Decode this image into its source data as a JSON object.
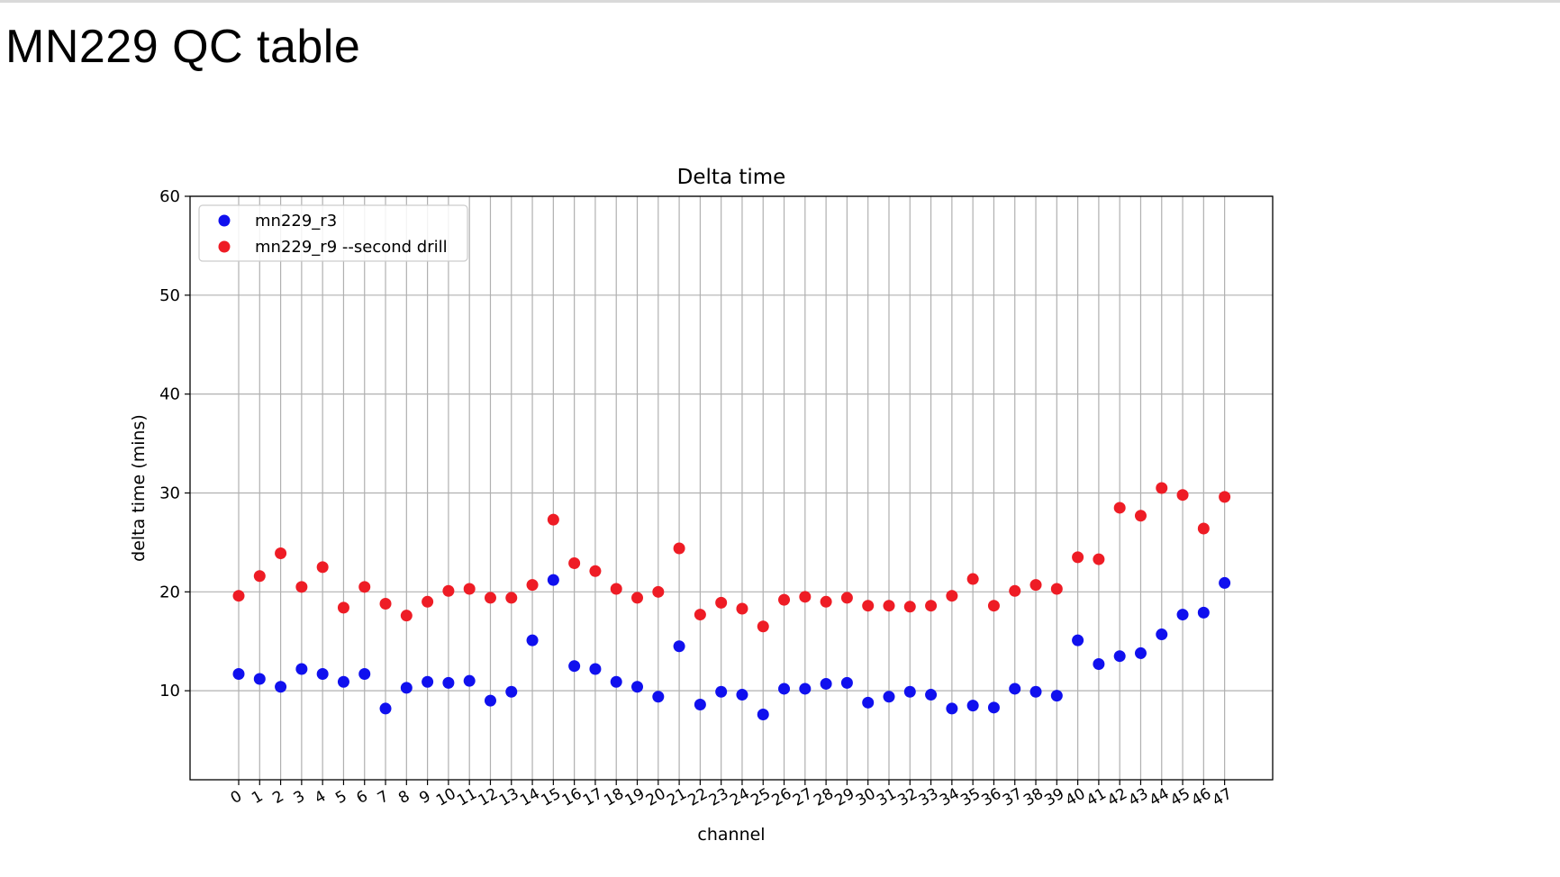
{
  "page": {
    "title": "MN229 QC table"
  },
  "chart_data": {
    "type": "scatter",
    "title": "Delta time",
    "xlabel": "channel",
    "ylabel": "delta time (mins)",
    "ylim": [
      1,
      60
    ],
    "yticks": [
      10,
      20,
      30,
      40,
      50,
      60
    ],
    "x": [
      0,
      1,
      2,
      3,
      4,
      5,
      6,
      7,
      8,
      9,
      10,
      11,
      12,
      13,
      14,
      15,
      16,
      17,
      18,
      19,
      20,
      21,
      22,
      23,
      24,
      25,
      26,
      27,
      28,
      29,
      30,
      31,
      32,
      33,
      34,
      35,
      36,
      37,
      38,
      39,
      40,
      41,
      42,
      43,
      44,
      45,
      46,
      47
    ],
    "xtick_labels": [
      "0",
      "1",
      "2",
      "3",
      "4",
      "5",
      "6",
      "7",
      "8",
      "9",
      "10",
      "11",
      "12",
      "13",
      "14",
      "15",
      "16",
      "17",
      "18",
      "19",
      "20",
      "21",
      "22",
      "23",
      "24",
      "25",
      "26",
      "27",
      "28",
      "29",
      "30",
      "31",
      "32",
      "33",
      "34",
      "35",
      "36",
      "37",
      "38",
      "39",
      "40",
      "41",
      "42",
      "43",
      "44",
      "45",
      "46",
      "47"
    ],
    "grid": true,
    "legend_position": "top-left",
    "series": [
      {
        "name": "mn229_r3",
        "color": "#1010ee",
        "values": [
          11.7,
          11.2,
          10.4,
          12.2,
          11.7,
          10.9,
          11.7,
          8.2,
          10.3,
          10.9,
          10.8,
          11.0,
          9.0,
          9.9,
          15.1,
          21.2,
          12.5,
          12.2,
          10.9,
          10.4,
          9.4,
          14.5,
          8.6,
          9.9,
          9.6,
          7.6,
          10.2,
          10.2,
          10.7,
          10.8,
          8.8,
          9.4,
          9.9,
          9.6,
          8.2,
          8.5,
          8.3,
          10.2,
          9.9,
          9.5,
          15.1,
          12.7,
          13.5,
          13.8,
          15.7,
          17.7,
          17.9,
          20.9
        ]
      },
      {
        "name": "mn229_r9 --second drill",
        "color": "#ee1c25",
        "values": [
          19.6,
          21.6,
          23.9,
          20.5,
          22.5,
          18.4,
          20.5,
          18.8,
          17.6,
          19.0,
          20.1,
          20.3,
          19.4,
          19.4,
          20.7,
          27.3,
          22.9,
          22.1,
          20.3,
          19.4,
          20.0,
          24.4,
          17.7,
          18.9,
          18.3,
          16.5,
          19.2,
          19.5,
          19.0,
          19.4,
          18.6,
          18.6,
          18.5,
          18.6,
          19.6,
          21.3,
          18.6,
          20.1,
          20.7,
          20.3,
          23.5,
          23.3,
          28.5,
          27.7,
          30.5,
          29.8,
          26.4,
          29.6
        ]
      }
    ]
  }
}
